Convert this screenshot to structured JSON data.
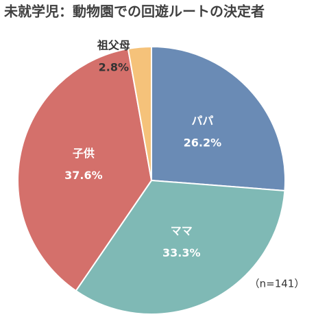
{
  "chart_data": {
    "type": "pie",
    "title": "未就学児：動物園での回遊ルートの決定者",
    "categories": [
      "パパ",
      "ママ",
      "子供",
      "祖父母"
    ],
    "values": [
      26.2,
      33.3,
      37.6,
      2.8
    ],
    "value_labels": [
      "26.2%",
      "33.3%",
      "37.6%",
      "2.8%"
    ],
    "colors": [
      "#6a8bb5",
      "#7fb9b5",
      "#d4706b",
      "#f5c27a"
    ],
    "annotation": "（n=141）"
  }
}
